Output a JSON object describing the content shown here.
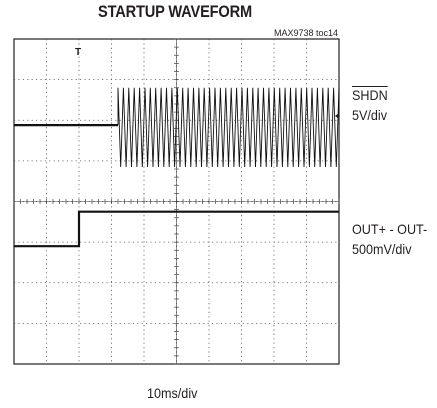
{
  "title": "STARTUP WAVEFORM",
  "figure_id": "MAX9738 toc14",
  "trigger_marker": "T",
  "chart_data": {
    "type": "line",
    "title": "STARTUP WAVEFORM",
    "grid": true,
    "divisions": {
      "x": 10,
      "y": 8
    },
    "x_scale_label": "10ms/div",
    "x_unit": "ms",
    "xlim": [
      0,
      100
    ],
    "series": [
      {
        "name": "SHDN",
        "scale_label": "5V/div",
        "description": "logic step from low to high",
        "x": [
          0,
          20,
          20,
          100
        ],
        "y_div": [
          2.9,
          2.9,
          3.75,
          3.75
        ],
        "color": "#111111"
      },
      {
        "name": "OUT+ - OUT-",
        "scale_label": "500mV/div",
        "description": "flat trace, then amplifier output burst begins",
        "x_flat": [
          0,
          32
        ],
        "y_flat_div": 5.88,
        "burst_start_x": 32,
        "burst_end_x": 100,
        "burst_top_div": 6.8,
        "burst_bottom_div": 4.85,
        "cycles_per_div": 6,
        "color": "#111111"
      }
    ]
  }
}
